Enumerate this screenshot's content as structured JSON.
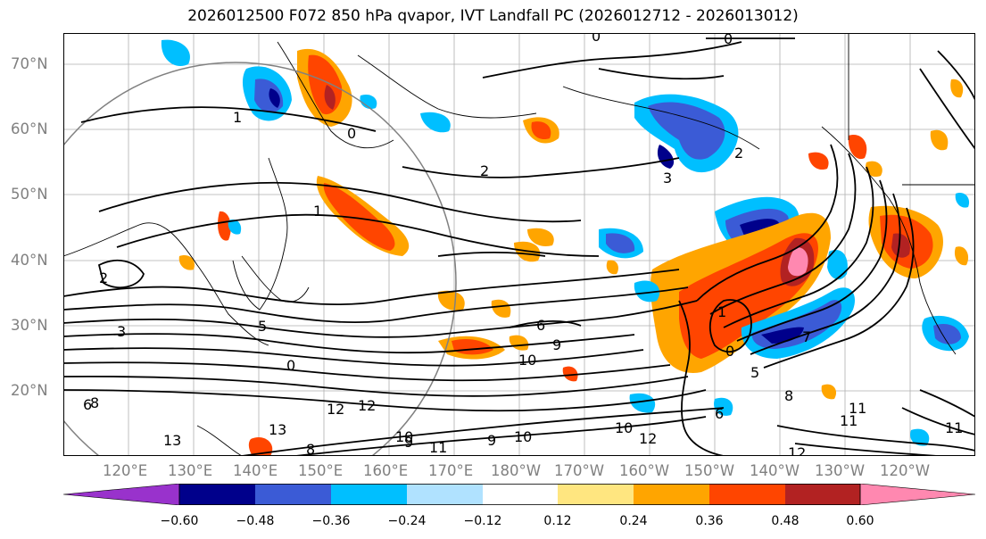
{
  "title": "2026012500 F072 850 hPa qvapor, IVT Landfall PC (2026012712 - 2026013012)",
  "lat_labels": [
    "70°N",
    "60°N",
    "50°N",
    "40°N",
    "30°N",
    "20°N"
  ],
  "lon_labels": [
    "120°E",
    "130°E",
    "140°E",
    "150°E",
    "160°E",
    "170°E",
    "180°W",
    "170°W",
    "160°W",
    "150°W",
    "140°W",
    "130°W",
    "120°W"
  ],
  "contour_labels": [
    "0",
    "0",
    "1",
    "0",
    "2",
    "3",
    "2",
    "1",
    "2",
    "3",
    "5",
    "6",
    "9",
    "10",
    "12",
    "13",
    "12",
    "10",
    "11",
    "12",
    "11",
    "8",
    "6",
    "7",
    "1",
    "0",
    "0",
    "6",
    "8",
    "9",
    "10",
    "11",
    "12",
    "13",
    "11",
    "8",
    "10",
    "9",
    "5"
  ],
  "colorbar": {
    "ticks": [
      "−0.60",
      "−0.48",
      "−0.36",
      "−0.24",
      "−0.12",
      "0.12",
      "0.24",
      "0.36",
      "0.48",
      "0.60"
    ],
    "colors": [
      "#9932cc",
      "#00008b",
      "#3b5bd6",
      "#00bfff",
      "#b0e2ff",
      "#ffffff",
      "#ffe680",
      "#ffa500",
      "#ff4500",
      "#b22222",
      "#ff88b0"
    ]
  },
  "palette": {
    "deep_blue": "#00008b",
    "med_blue": "#3b5bd6",
    "sky": "#00bfff",
    "pale_blue": "#b0e2ff",
    "yellow": "#ffe680",
    "orange": "#ffa500",
    "red_orange": "#ff4500",
    "dark_red": "#b22222",
    "pink": "#ff88b0"
  }
}
